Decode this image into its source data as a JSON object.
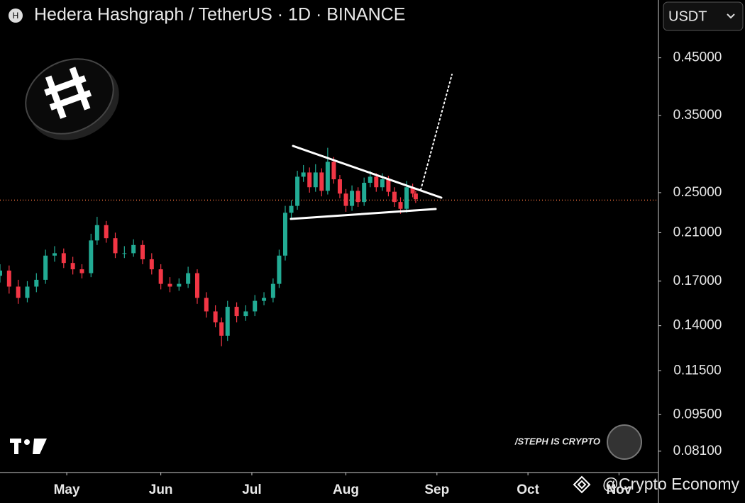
{
  "chart_data": {
    "type": "candlestick",
    "title": "Hedera Hashgraph / TetherUS · 1D · BINANCE",
    "x": [
      0,
      3,
      6,
      9,
      12,
      15,
      18,
      21,
      24,
      27,
      30,
      32,
      35,
      38,
      41,
      44,
      47,
      50,
      53,
      56,
      59,
      62,
      65,
      68,
      71,
      73,
      75,
      78,
      81,
      84,
      87,
      90,
      92,
      94,
      96,
      98,
      100,
      102,
      104,
      106,
      108,
      110,
      112,
      114,
      116,
      118,
      120,
      122,
      124,
      126,
      128,
      130,
      132,
      134,
      136,
      137
    ],
    "open": [
      0.174,
      0.178,
      0.166,
      0.158,
      0.166,
      0.171,
      0.19,
      0.192,
      0.184,
      0.179,
      0.176,
      0.203,
      0.217,
      0.205,
      0.192,
      0.192,
      0.199,
      0.187,
      0.179,
      0.168,
      0.166,
      0.168,
      0.176,
      0.158,
      0.149,
      0.142,
      0.134,
      0.152,
      0.146,
      0.149,
      0.156,
      0.158,
      0.168,
      0.19,
      0.229,
      0.236,
      0.268,
      0.273,
      0.256,
      0.273,
      0.252,
      0.286,
      0.265,
      0.249,
      0.236,
      0.252,
      0.24,
      0.261,
      0.268,
      0.256,
      0.265,
      0.251,
      0.24,
      0.233,
      0.256,
      0.249
    ],
    "high": [
      0.183,
      0.182,
      0.171,
      0.17,
      0.176,
      0.195,
      0.198,
      0.196,
      0.189,
      0.183,
      0.209,
      0.225,
      0.221,
      0.21,
      0.198,
      0.204,
      0.203,
      0.192,
      0.183,
      0.173,
      0.172,
      0.181,
      0.179,
      0.162,
      0.153,
      0.145,
      0.156,
      0.155,
      0.153,
      0.16,
      0.162,
      0.172,
      0.195,
      0.236,
      0.242,
      0.275,
      0.282,
      0.279,
      0.283,
      0.278,
      0.304,
      0.292,
      0.27,
      0.254,
      0.258,
      0.256,
      0.267,
      0.275,
      0.272,
      0.272,
      0.269,
      0.256,
      0.245,
      0.263,
      0.26,
      0.252
    ],
    "low": [
      0.169,
      0.161,
      0.154,
      0.155,
      0.162,
      0.168,
      0.185,
      0.18,
      0.175,
      0.172,
      0.173,
      0.199,
      0.201,
      0.188,
      0.188,
      0.189,
      0.183,
      0.175,
      0.164,
      0.162,
      0.163,
      0.165,
      0.154,
      0.145,
      0.139,
      0.128,
      0.131,
      0.142,
      0.143,
      0.146,
      0.153,
      0.155,
      0.165,
      0.186,
      0.224,
      0.232,
      0.262,
      0.25,
      0.251,
      0.246,
      0.248,
      0.26,
      0.244,
      0.23,
      0.231,
      0.235,
      0.236,
      0.256,
      0.251,
      0.252,
      0.246,
      0.235,
      0.228,
      0.229,
      0.245,
      0.239
    ],
    "close": [
      0.178,
      0.166,
      0.158,
      0.166,
      0.171,
      0.19,
      0.192,
      0.184,
      0.179,
      0.176,
      0.203,
      0.217,
      0.205,
      0.192,
      0.192,
      0.199,
      0.187,
      0.179,
      0.168,
      0.166,
      0.168,
      0.176,
      0.158,
      0.149,
      0.142,
      0.134,
      0.152,
      0.146,
      0.149,
      0.156,
      0.158,
      0.168,
      0.19,
      0.229,
      0.236,
      0.268,
      0.273,
      0.256,
      0.273,
      0.252,
      0.286,
      0.265,
      0.249,
      0.236,
      0.252,
      0.24,
      0.261,
      0.268,
      0.256,
      0.265,
      0.251,
      0.24,
      0.233,
      0.256,
      0.249,
      0.243
    ],
    "up_color": "#22ab94",
    "down_color": "#f23645",
    "last_price": 0.242,
    "last_price_color": "#f0703c",
    "xlim": [
      0,
      217
    ],
    "xticks": [
      {
        "value": 22,
        "label": "May"
      },
      {
        "value": 53,
        "label": "Jun"
      },
      {
        "value": 83,
        "label": "Jul"
      },
      {
        "value": 114,
        "label": "Aug"
      },
      {
        "value": 144,
        "label": "Sep"
      },
      {
        "value": 174,
        "label": "Oct"
      },
      {
        "value": 204,
        "label": "Nov"
      }
    ],
    "log_scale": true,
    "ylim": [
      0.0738,
      0.579
    ],
    "yticks": [
      {
        "value": 0.45,
        "label": "0.45000"
      },
      {
        "value": 0.35,
        "label": "0.35000"
      },
      {
        "value": 0.25,
        "label": "0.25000"
      },
      {
        "value": 0.21,
        "label": "0.21000"
      },
      {
        "value": 0.17,
        "label": "0.17000"
      },
      {
        "value": 0.14,
        "label": "0.14000"
      },
      {
        "value": 0.115,
        "label": "0.11500"
      },
      {
        "value": 0.095,
        "label": "0.09500"
      },
      {
        "value": 0.081,
        "label": "0.08100"
      }
    ]
  },
  "overlay": {
    "logo_letter": "H",
    "currency": "USDT",
    "watermark": "/STEPH IS CRYPTO",
    "credit": "@Crypto Economy"
  }
}
